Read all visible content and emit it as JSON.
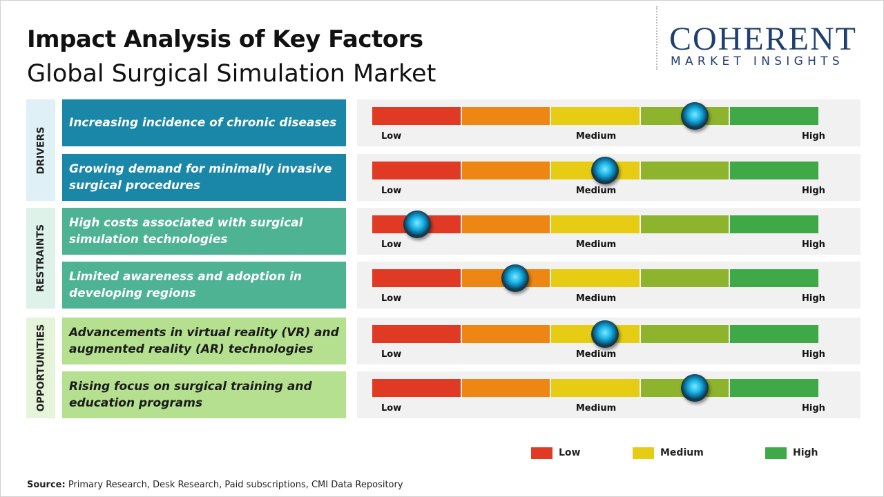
{
  "header": {
    "title": "Impact Analysis of Key Factors",
    "subtitle": "Global Surgical Simulation Market"
  },
  "logo": {
    "name": "COHERENT",
    "tagline": "MARKET INSIGHTS"
  },
  "scale": {
    "lim": [
      0,
      5
    ],
    "segment_colors": [
      "#e03a24",
      "#ee8613",
      "#e6cc12",
      "#8db42c",
      "#3fa847"
    ],
    "labels": [
      "Low",
      "Medium",
      "High"
    ]
  },
  "groups": [
    {
      "label": "DRIVERS",
      "strip_color": "#dff0f7",
      "box_color": "#1b87a8",
      "text_color": "#ffffff",
      "factors": [
        {
          "text": "Increasing incidence of chronic diseases",
          "impact": 3.6
        },
        {
          "text": "Growing demand for minimally invasive surgical procedures",
          "impact": 2.6
        }
      ]
    },
    {
      "label": "RESTRAINTS",
      "strip_color": "#def2ea",
      "box_color": "#4db393",
      "text_color": "#ffffff",
      "factors": [
        {
          "text": "High costs associated with surgical simulation technologies",
          "impact": 0.5
        },
        {
          "text": "Limited awareness and adoption in developing regions",
          "impact": 1.6
        }
      ]
    },
    {
      "label": "OPPORTUNITIES",
      "strip_color": "#e6f4d9",
      "box_color": "#b5e08f",
      "text_color": "#1a1a1a",
      "factors": [
        {
          "text": "Advancements in virtual reality (VR) and augmented reality (AR) technologies",
          "impact": 2.6
        },
        {
          "text": "Rising focus on surgical training and education programs",
          "impact": 3.6
        }
      ]
    }
  ],
  "legend": [
    {
      "label": "Low",
      "color": "#e03a24"
    },
    {
      "label": "Medium",
      "color": "#e6cc12"
    },
    {
      "label": "High",
      "color": "#3fa847"
    }
  ],
  "source": {
    "label": "Source:",
    "text": "Primary Research, Desk Research, Paid subscriptions, CMI Data Repository"
  }
}
